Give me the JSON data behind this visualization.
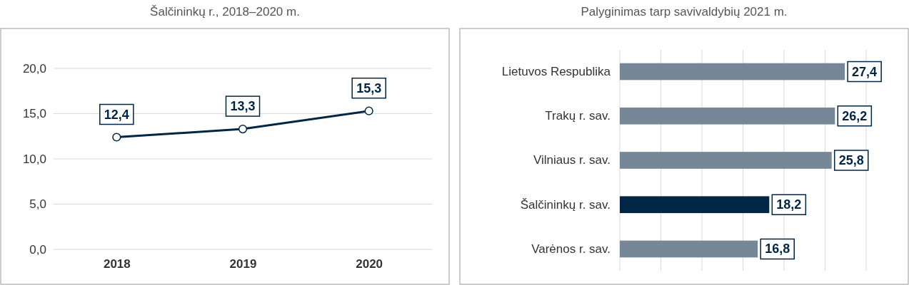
{
  "chart_data": [
    {
      "type": "line",
      "title": "Šalčininkų r., 2018–2020 m.",
      "categories": [
        "2018",
        "2019",
        "2020"
      ],
      "values": [
        12.4,
        13.3,
        15.3
      ],
      "value_labels": [
        "12,4",
        "13,3",
        "15,3"
      ],
      "color": "#002545",
      "marker": "circle",
      "ylim": [
        0,
        20
      ],
      "yticks": [
        {
          "value": 0,
          "label": "0,0"
        },
        {
          "value": 5,
          "label": "5,0"
        },
        {
          "value": 10,
          "label": "10,0"
        },
        {
          "value": 15,
          "label": "15,0"
        },
        {
          "value": 20,
          "label": "20,0"
        }
      ],
      "grid": "y"
    },
    {
      "type": "bar",
      "orientation": "horizontal",
      "title": "Palyginimas tarp savivaldybių 2021 m.",
      "categories": [
        "Lietuvos Respublika",
        "Trakų r. sav.",
        "Vilniaus r. sav.",
        "Šalčininkų r. sav.",
        "Varėnos r. sav."
      ],
      "values": [
        27.4,
        26.2,
        25.8,
        18.2,
        16.8
      ],
      "value_labels": [
        "27,4",
        "26,2",
        "25,8",
        "18,2",
        "16,8"
      ],
      "colors": [
        "#768797",
        "#768797",
        "#768797",
        "#002545",
        "#768797"
      ],
      "xlim": [
        0,
        30
      ],
      "xticks": [
        {
          "value": 0,
          "label": null
        },
        {
          "value": 5,
          "label": null
        },
        {
          "value": 10,
          "label": null
        },
        {
          "value": 15,
          "label": null
        },
        {
          "value": 20,
          "label": null
        },
        {
          "value": 25,
          "label": null
        },
        {
          "value": 30,
          "label": null
        }
      ],
      "grid": "x",
      "tick_labels": "y"
    }
  ]
}
